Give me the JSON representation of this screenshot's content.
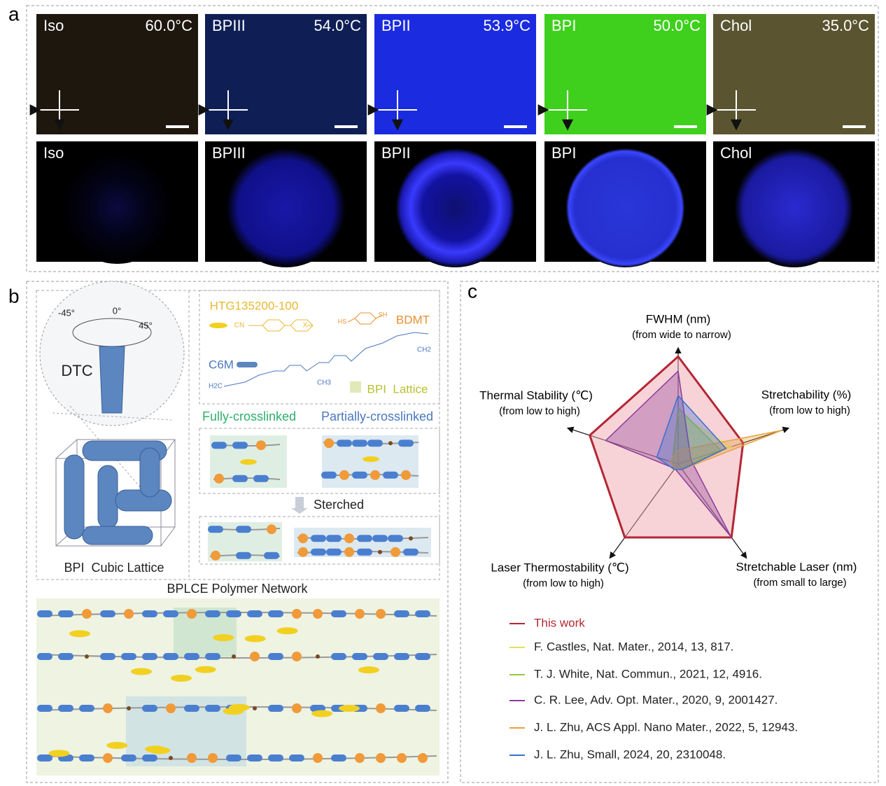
{
  "panel_labels": [
    "a",
    "b",
    "c"
  ],
  "panel_a": {
    "top_row": [
      {
        "label": "Iso",
        "temperature": "60.0°C"
      },
      {
        "label": "BPIII",
        "temperature": "54.0°C"
      },
      {
        "label": "BPII",
        "temperature": "53.9°C"
      },
      {
        "label": "BPI",
        "temperature": "50.0°C"
      },
      {
        "label": "Chol",
        "temperature": "35.0°C"
      }
    ],
    "bottom_row": [
      "Iso",
      "BPIII",
      "BPII",
      "BPI",
      "Chol"
    ]
  },
  "panel_b": {
    "dtc_angles": [
      "-45°",
      "0°",
      "45°"
    ],
    "dtc": "DTC",
    "cubic_lattice": "BPI  Cubic Lattice",
    "htg": "HTG135200-100",
    "htg_groups": [
      "CN",
      "X"
    ],
    "bdmt": "BDMT",
    "bdmt_groups": [
      "HS",
      "SH"
    ],
    "c6m": "C6M",
    "c6m_groups": [
      "H2C",
      "CH3",
      "CH2"
    ],
    "bpi_lattice": "BPI  Lattice",
    "fully": "Fully-crosslinked",
    "partially": "Partially-crosslinked",
    "stretched": "Sterched",
    "network": "BPLCE Polymer Network"
  },
  "chart_data": {
    "type": "radar",
    "axes": [
      {
        "name": "FWHM (nm)",
        "note": "(from wide to narrow)"
      },
      {
        "name": "Stretchability (%)",
        "note": "(from low to high)"
      },
      {
        "name": "Stretchable Laser (nm)",
        "note": "(from small to large)"
      },
      {
        "name": "Laser Thermostability (℃)",
        "note": "(from low to high)"
      },
      {
        "name": "Thermal Stability (℃)",
        "note": "(from low to high)"
      }
    ],
    "rlim": [
      0,
      1
    ],
    "series": [
      {
        "name": "This work",
        "color": "#b32634",
        "values": [
          0.96,
          0.61,
          0.81,
          0.81,
          0.83
        ]
      },
      {
        "name": "F. Castles, Nat. Mater., 2014, 13, 817.",
        "color": "#e6df5a",
        "values": [
          0.45,
          0.5,
          0.05,
          0.05,
          0.06
        ]
      },
      {
        "name": "T. J. White, Nat. Commun., 2021, 12, 4916.",
        "color": "#96c93d",
        "values": [
          0.5,
          0.4,
          0.05,
          0.05,
          0.05
        ]
      },
      {
        "name": "C. R. Lee, Adv. Opt. Mater., 2020, 9, 2001427.",
        "color": "#8b3c9a",
        "values": [
          0.83,
          0.12,
          0.8,
          0.05,
          0.68
        ]
      },
      {
        "name": "J. L. Zhu, ACS Appl. Nano Mater., 2022, 5, 12943.",
        "color": "#e8a040",
        "values": [
          0.12,
          0.97,
          0.06,
          0.05,
          0.08
        ]
      },
      {
        "name": "J. L. Zhu, Small, 2024, 20, 2310048.",
        "color": "#3b6fcf",
        "values": [
          0.61,
          0.45,
          0.06,
          0.06,
          0.2
        ]
      }
    ]
  }
}
